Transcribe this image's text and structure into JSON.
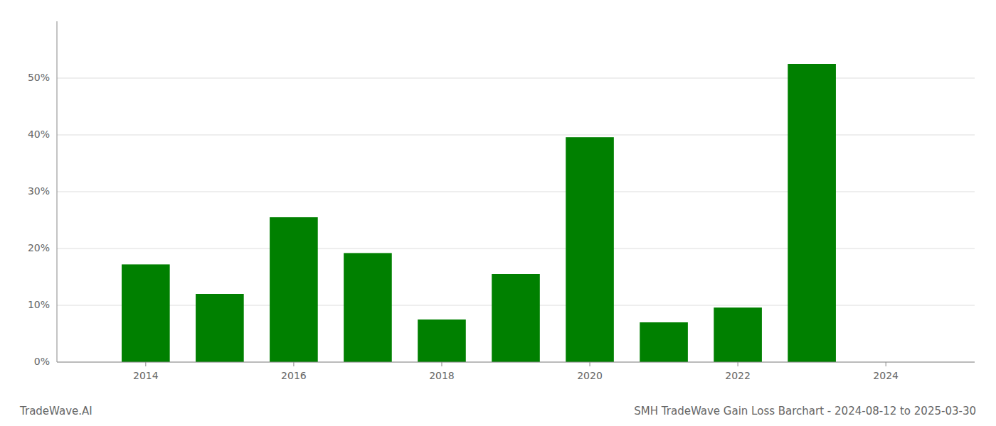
{
  "chart_data": {
    "type": "bar",
    "title": "SMH TradeWave Gain Loss Barchart - 2024-08-12 to 2025-03-30",
    "annotations": [
      "TradeWave.AI"
    ],
    "x": [
      2014,
      2015,
      2016,
      2017,
      2018,
      2019,
      2020,
      2021,
      2022,
      2023
    ],
    "values": [
      0.172,
      0.12,
      0.255,
      0.192,
      0.075,
      0.155,
      0.396,
      0.07,
      0.096,
      0.525
    ],
    "color": "#008000",
    "xlim": [
      2012.8,
      2025.2
    ],
    "xticks": [
      2014,
      2016,
      2018,
      2020,
      2022,
      2024
    ],
    "ylim": [
      0,
      0.6
    ],
    "yticks": [
      {
        "value": 0.0,
        "label": "0%"
      },
      {
        "value": 0.1,
        "label": "10%"
      },
      {
        "value": 0.2,
        "label": "20%"
      },
      {
        "value": 0.3,
        "label": "30%"
      },
      {
        "value": 0.4,
        "label": "40%"
      },
      {
        "value": 0.5,
        "label": "50%"
      }
    ],
    "grid": true
  }
}
